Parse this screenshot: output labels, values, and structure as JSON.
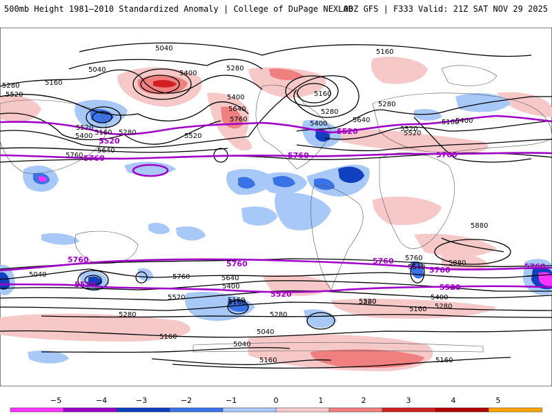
{
  "header": {
    "title_left": "500mb Height 1981–2010 Standardized Anomaly | College of DuPage NEXLAB",
    "title_right": "00Z GFS | F333 Valid: 21Z SAT NOV 29 2025"
  },
  "map": {
    "contour_labels_black": [
      "5040",
      "5160",
      "5040",
      "5160",
      "5280",
      "5280",
      "5400",
      "5400",
      "5280",
      "5160",
      "5520",
      "5400",
      "5160",
      "5280",
      "5520",
      "5400",
      "5520",
      "5640",
      "5640",
      "5760",
      "5640",
      "5280",
      "5160",
      "5520",
      "5400",
      "5760",
      "5880",
      "5880",
      "5760",
      "5640",
      "5760",
      "5400",
      "5640",
      "5280",
      "5400",
      "5520",
      "5160",
      "5520",
      "5160",
      "5280",
      "5160",
      "5520",
      "5280",
      "5040",
      "5040",
      "5160",
      "5160",
      "5040",
      "5160",
      "5280"
    ],
    "contour_labels_purple": [
      "5520",
      "5520",
      "5760",
      "5760",
      "5760",
      "5760",
      "5760",
      "5760",
      "5760",
      "5760",
      "5520",
      "5520",
      "5520"
    ]
  },
  "colorbar": {
    "ticks": [
      "−5",
      "−4",
      "−3",
      "−2",
      "−1",
      "0",
      "1",
      "2",
      "3",
      "4",
      "5"
    ],
    "colors": [
      "#ff33ff",
      "#9900cc",
      "#1040c0",
      "#3a72e8",
      "#a8c8f8",
      "#f6c8c8",
      "#f08080",
      "#d02020",
      "#b00000",
      "#ffa500"
    ]
  }
}
